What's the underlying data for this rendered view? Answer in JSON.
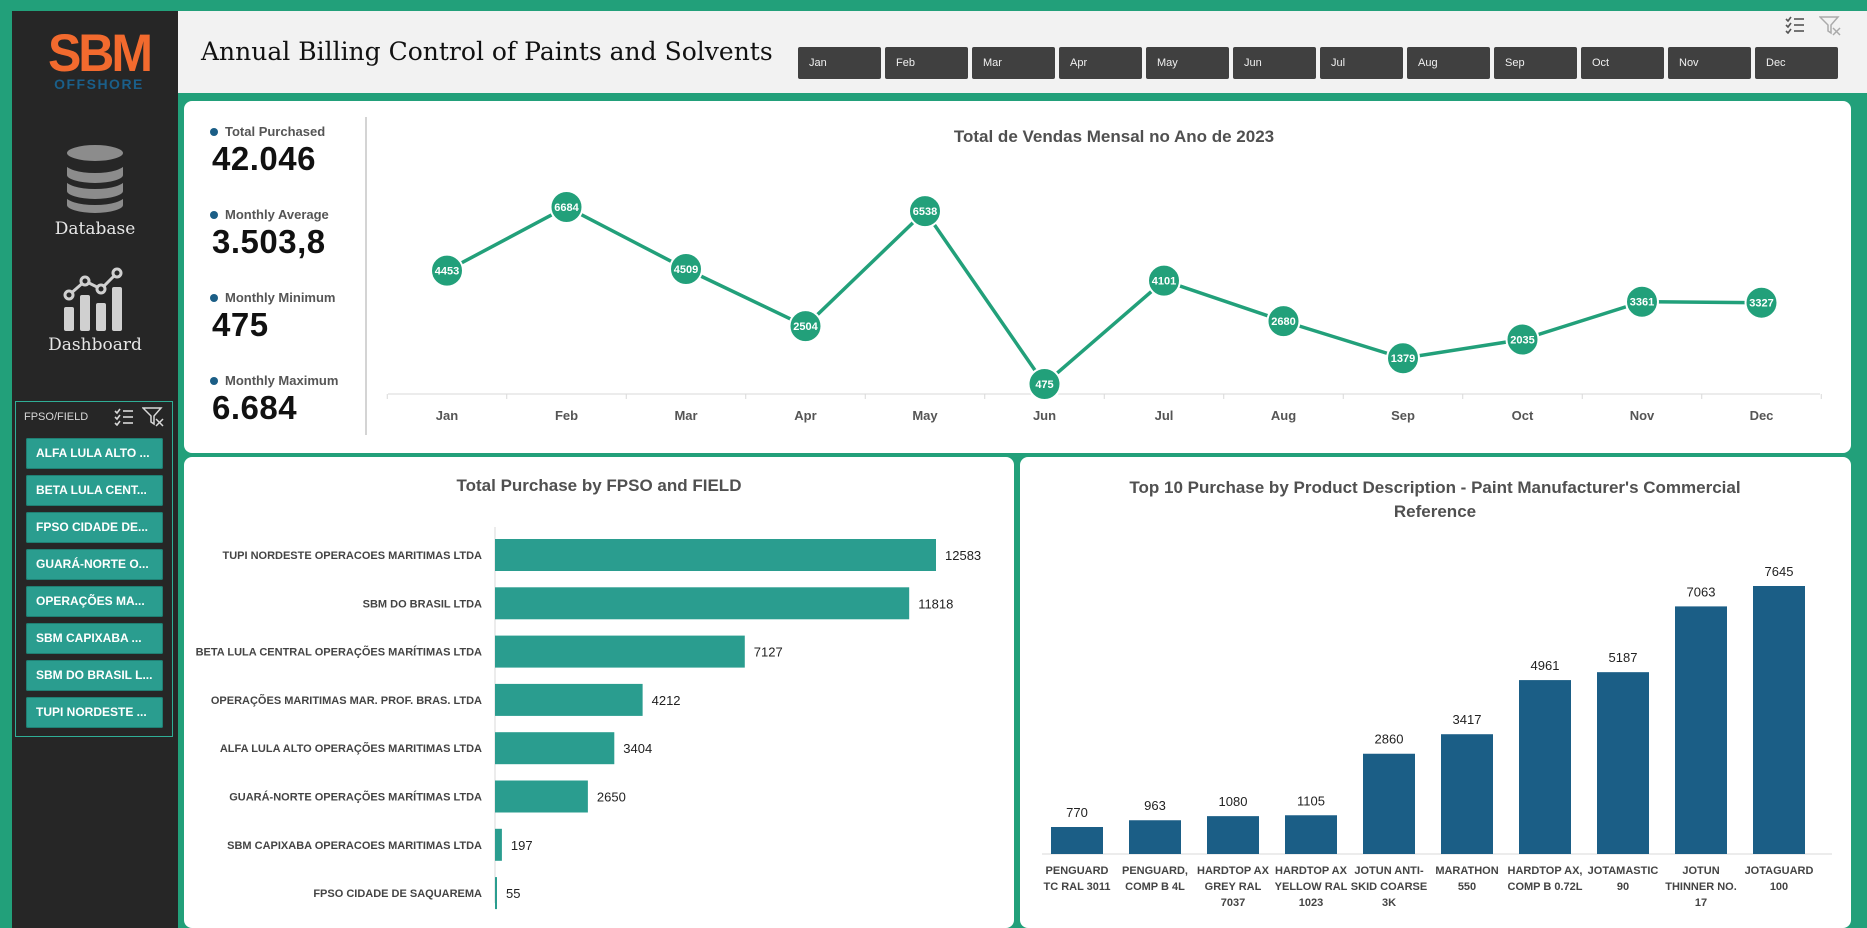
{
  "brand": {
    "logo_top": "SBM",
    "logo_bottom": "OFFSHORE"
  },
  "nav": {
    "database_label": "Database",
    "dashboard_label": "Dashboard"
  },
  "slicer": {
    "title": "FPSO/FIELD",
    "items": [
      "ALFA LULA ALTO ...",
      "BETA LULA CENT...",
      "FPSO CIDADE DE...",
      "GUARÁ-NORTE O...",
      "OPERAÇÕES MA...",
      "SBM CAPIXABA ...",
      "SBM DO BRASIL L...",
      "TUPI NORDESTE ..."
    ]
  },
  "header": {
    "title": "Annual Billing Control of Paints and Solvents",
    "months": [
      "Jan",
      "Feb",
      "Mar",
      "Apr",
      "May",
      "Jun",
      "Jul",
      "Aug",
      "Sep",
      "Oct",
      "Nov",
      "Dec"
    ]
  },
  "kpis": {
    "total_purchased": {
      "label": "Total Purchased",
      "value": "42.046"
    },
    "monthly_average": {
      "label": "Monthly Average",
      "value": "3.503,8"
    },
    "monthly_minimum": {
      "label": "Monthly Minimum",
      "value": "475"
    },
    "monthly_maximum": {
      "label": "Monthly Maximum",
      "value": "6.684"
    }
  },
  "colors": {
    "line": "#22a07a",
    "hbar": "#2a9d8f",
    "vbar": "#1b5e86"
  },
  "chart_data": [
    {
      "type": "line",
      "title": "Total de Vendas Mensal no Ano de 2023",
      "categories": [
        "Jan",
        "Feb",
        "Mar",
        "Apr",
        "May",
        "Jun",
        "Jul",
        "Aug",
        "Sep",
        "Oct",
        "Nov",
        "Dec"
      ],
      "values": [
        4453,
        6684,
        4509,
        2504,
        6538,
        475,
        4101,
        2680,
        1379,
        2035,
        3361,
        3327
      ],
      "ylim": [
        0,
        7500
      ]
    },
    {
      "type": "bar",
      "orientation": "horizontal",
      "title": "Total Purchase by FPSO and FIELD",
      "categories": [
        "TUPI NORDESTE OPERACOES MARITIMAS LTDA",
        "SBM DO BRASIL LTDA",
        "BETA LULA CENTRAL OPERAÇÕES MARÍTIMAS LTDA",
        "OPERAÇÕES MARITIMAS MAR. PROF. BRAS. LTDA",
        "ALFA LULA ALTO OPERAÇÕES MARITIMAS LTDA",
        "GUARÁ-NORTE OPERAÇÕES MARÍTIMAS LTDA",
        "SBM CAPIXABA OPERACOES MARITIMAS LTDA",
        "FPSO CIDADE DE SAQUAREMA"
      ],
      "values": [
        12583,
        11818,
        7127,
        4212,
        3404,
        2650,
        197,
        55
      ],
      "xlim": [
        0,
        12583
      ]
    },
    {
      "type": "bar",
      "orientation": "vertical",
      "title": "Top 10 Purchase by Product Description - Paint Manufacturer's Commercial Reference",
      "categories": [
        [
          "PENGUARD",
          "TC RAL 3011"
        ],
        [
          "PENGUARD,",
          "COMP B 4L"
        ],
        [
          "HARDTOP AX",
          "GREY RAL",
          "7037"
        ],
        [
          "HARDTOP AX",
          "YELLOW RAL",
          "1023"
        ],
        [
          "JOTUN ANTI-",
          "SKID COARSE",
          "3K"
        ],
        [
          "MARATHON",
          "550"
        ],
        [
          "HARDTOP AX,",
          "COMP B 0.72L"
        ],
        [
          "JOTAMASTIC",
          "90"
        ],
        [
          "JOTUN",
          "THINNER NO.",
          "17"
        ],
        [
          "JOTAGUARD",
          "100"
        ]
      ],
      "values": [
        770,
        963,
        1080,
        1105,
        2860,
        3417,
        4961,
        5187,
        7063,
        7645
      ],
      "ylim": [
        0,
        7645
      ]
    }
  ]
}
